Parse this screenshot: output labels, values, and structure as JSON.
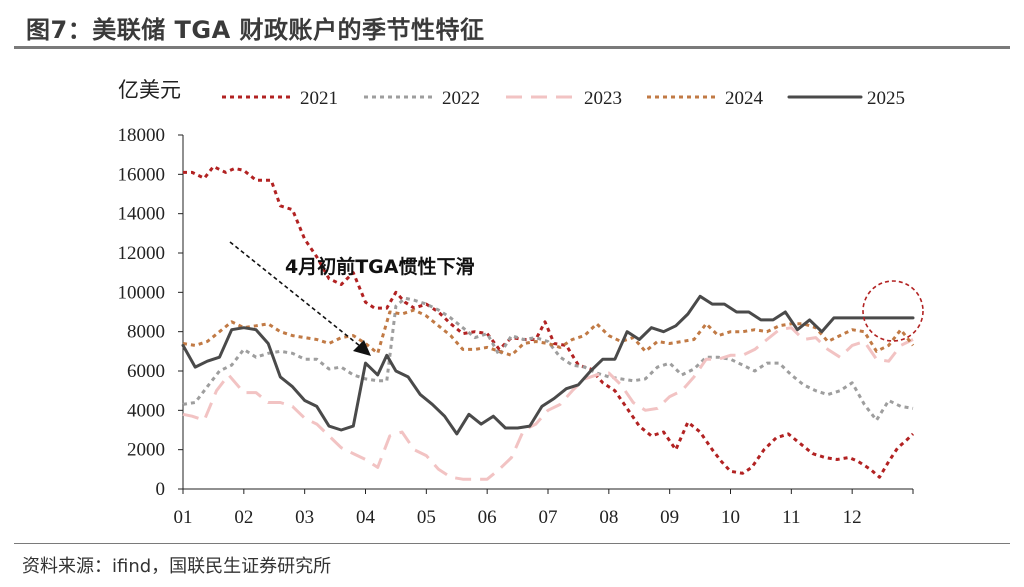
{
  "title": "图7：美联储 TGA 财政账户的季节性特征",
  "source": "资料来源：ifind，国联民生证券研究所",
  "chart_data": {
    "type": "line",
    "ylabel": "亿美元",
    "ylim": [
      0,
      18000
    ],
    "yticks": [
      0,
      2000,
      4000,
      6000,
      8000,
      10000,
      12000,
      14000,
      16000,
      18000
    ],
    "xlim": [
      1,
      13
    ],
    "xticks": [
      "01",
      "02",
      "03",
      "04",
      "05",
      "06",
      "07",
      "08",
      "09",
      "10",
      "11",
      "12"
    ],
    "annotation": "4月初前TGA惯性下滑",
    "highlight": "2025",
    "series": [
      {
        "name": "2021",
        "color": "#b22222",
        "style": "dotted",
        "x": [
          1,
          1.15,
          1.35,
          1.5,
          1.7,
          1.85,
          2,
          2.2,
          2.45,
          2.6,
          2.8,
          3,
          3.2,
          3.4,
          3.6,
          3.8,
          4,
          4.15,
          4.35,
          4.5,
          4.65,
          4.8,
          5,
          5.2,
          5.4,
          5.6,
          5.8,
          6,
          6.2,
          6.4,
          6.6,
          6.8,
          6.95,
          7.1,
          7.3,
          7.5,
          7.7,
          7.9,
          8.1,
          8.3,
          8.5,
          8.7,
          8.9,
          9.1,
          9.3,
          9.5,
          9.7,
          9.85,
          10,
          10.2,
          10.35,
          10.55,
          10.75,
          10.95,
          11.15,
          11.35,
          11.55,
          11.75,
          11.95,
          12.1,
          12.3,
          12.45,
          12.6,
          12.75,
          12.9,
          13
        ],
        "y": [
          16100,
          16100,
          15800,
          16400,
          16100,
          16300,
          16200,
          15700,
          15700,
          14400,
          14200,
          12700,
          11800,
          10700,
          10400,
          11000,
          9500,
          9200,
          9200,
          10000,
          9500,
          9200,
          9400,
          9000,
          8400,
          7900,
          8000,
          7900,
          7100,
          7700,
          7600,
          7600,
          8500,
          7400,
          7300,
          6300,
          6100,
          5400,
          5000,
          4100,
          3200,
          2700,
          2900,
          2000,
          3400,
          2900,
          2000,
          1400,
          900,
          800,
          1100,
          2000,
          2600,
          2800,
          2300,
          1800,
          1600,
          1500,
          1600,
          1400,
          1000,
          600,
          1400,
          2100,
          2500,
          2800
        ]
      },
      {
        "name": "2022",
        "color": "#9e9e9e",
        "style": "dotted",
        "x": [
          1,
          1.2,
          1.4,
          1.6,
          1.8,
          2,
          2.2,
          2.4,
          2.6,
          2.8,
          3,
          3.2,
          3.4,
          3.6,
          3.8,
          4,
          4.2,
          4.35,
          4.5,
          4.65,
          4.8,
          5,
          5.2,
          5.4,
          5.6,
          5.8,
          6,
          6.2,
          6.4,
          6.6,
          6.8,
          7,
          7.2,
          7.4,
          7.6,
          7.8,
          8,
          8.2,
          8.4,
          8.6,
          8.8,
          9,
          9.2,
          9.4,
          9.6,
          9.8,
          10,
          10.2,
          10.4,
          10.6,
          10.8,
          11,
          11.2,
          11.4,
          11.6,
          11.8,
          12,
          12.2,
          12.4,
          12.6,
          12.8,
          13
        ],
        "y": [
          4300,
          4400,
          5200,
          6000,
          6300,
          7100,
          6700,
          6900,
          7000,
          6900,
          6600,
          6600,
          6100,
          6200,
          5800,
          5600,
          5500,
          5500,
          9300,
          9700,
          9600,
          9400,
          9100,
          8700,
          8200,
          7700,
          7900,
          6800,
          7800,
          7600,
          7700,
          7500,
          6700,
          6300,
          6200,
          5900,
          5700,
          5600,
          5500,
          5600,
          6200,
          6400,
          5800,
          6100,
          6700,
          6700,
          6600,
          6300,
          6000,
          6400,
          6400,
          5800,
          5300,
          5000,
          4800,
          5000,
          5400,
          4300,
          3500,
          4500,
          4200,
          4100
        ]
      },
      {
        "name": "2023",
        "color": "#f2c3c3",
        "style": "dashed",
        "x": [
          1,
          1.15,
          1.35,
          1.55,
          1.75,
          2,
          2.2,
          2.4,
          2.6,
          2.8,
          3,
          3.2,
          3.4,
          3.6,
          3.8,
          4,
          4.2,
          4.4,
          4.6,
          4.8,
          5,
          5.2,
          5.4,
          5.6,
          5.8,
          6,
          6.2,
          6.4,
          6.6,
          6.8,
          7,
          7.2,
          7.4,
          7.6,
          7.8,
          8,
          8.2,
          8.4,
          8.6,
          8.8,
          9,
          9.2,
          9.4,
          9.6,
          9.8,
          10,
          10.2,
          10.4,
          10.6,
          10.8,
          11,
          11.2,
          11.4,
          11.6,
          11.8,
          12,
          12.2,
          12.4,
          12.6,
          12.8,
          13
        ],
        "y": [
          3800,
          3700,
          3500,
          5000,
          5800,
          4900,
          4900,
          4400,
          4400,
          4200,
          3600,
          3300,
          2700,
          2100,
          1800,
          1500,
          1100,
          2700,
          2900,
          2000,
          1700,
          1000,
          600,
          500,
          500,
          500,
          1000,
          1600,
          3000,
          3300,
          4000,
          4300,
          5000,
          5600,
          5800,
          5900,
          5300,
          4400,
          4000,
          4100,
          4700,
          5000,
          5700,
          6600,
          6600,
          6800,
          6800,
          7100,
          7600,
          8100,
          8200,
          7600,
          7700,
          7100,
          6700,
          7300,
          7500,
          6600,
          6500,
          7300,
          7600
        ]
      },
      {
        "name": "2024",
        "color": "#c17a45",
        "style": "dotted",
        "x": [
          1,
          1.2,
          1.4,
          1.6,
          1.8,
          2,
          2.2,
          2.4,
          2.6,
          2.8,
          3,
          3.2,
          3.4,
          3.6,
          3.8,
          4,
          4.2,
          4.4,
          4.6,
          4.8,
          5,
          5.2,
          5.4,
          5.6,
          5.8,
          6,
          6.2,
          6.4,
          6.6,
          6.8,
          7,
          7.2,
          7.4,
          7.6,
          7.8,
          8,
          8.2,
          8.4,
          8.6,
          8.8,
          9,
          9.2,
          9.4,
          9.6,
          9.8,
          10,
          10.2,
          10.4,
          10.6,
          10.8,
          11,
          11.2,
          11.4,
          11.6,
          11.8,
          12,
          12.2,
          12.4,
          12.6,
          12.8,
          13
        ],
        "y": [
          7400,
          7300,
          7500,
          8000,
          8500,
          8200,
          8300,
          8400,
          8000,
          7800,
          7700,
          7600,
          7400,
          7700,
          7800,
          7400,
          6900,
          9000,
          8900,
          9100,
          8800,
          8300,
          7800,
          7100,
          7100,
          7200,
          7000,
          6800,
          7400,
          7500,
          7400,
          7200,
          7600,
          7800,
          8400,
          7800,
          7500,
          7700,
          7000,
          7500,
          7400,
          7500,
          7600,
          8400,
          7800,
          8000,
          8000,
          8100,
          8000,
          8300,
          8400,
          8400,
          8200,
          7500,
          7800,
          8100,
          8000,
          7000,
          7300,
          8100,
          7300
        ]
      },
      {
        "name": "2025",
        "color": "#4a4a4a",
        "style": "solid",
        "x": [
          1,
          1.2,
          1.4,
          1.6,
          1.8,
          2,
          2.2,
          2.4,
          2.6,
          2.8,
          3,
          3.2,
          3.4,
          3.6,
          3.8,
          4,
          4.2,
          4.35,
          4.5,
          4.7,
          4.9,
          5.1,
          5.3,
          5.5,
          5.7,
          5.9,
          6.1,
          6.3,
          6.5,
          6.7,
          6.9,
          7.1,
          7.3,
          7.5,
          7.7,
          7.9,
          8.1,
          8.3,
          8.5,
          8.7,
          8.9,
          9.1,
          9.3,
          9.5,
          9.7,
          9.9,
          10.1,
          10.3,
          10.5,
          10.7,
          10.9,
          11.1,
          11.3,
          11.5,
          11.7,
          11.9,
          12.1,
          12.3,
          12.5,
          12.7,
          12.9,
          13
        ],
        "y": [
          7300,
          6200,
          6500,
          6700,
          8100,
          8200,
          8100,
          7400,
          5700,
          5200,
          4500,
          4200,
          3200,
          3000,
          3200,
          6400,
          5800,
          6800,
          6000,
          5700,
          4800,
          4300,
          3700,
          2800,
          3800,
          3300,
          3700,
          3100,
          3100,
          3200,
          4200,
          4600,
          5100,
          5300,
          6000,
          6600,
          6600,
          8000,
          7600,
          8200,
          8000,
          8300,
          8900,
          9800,
          9400,
          9400,
          9000,
          9000,
          8600,
          8600,
          9000,
          8100,
          8600,
          8000,
          8700,
          8700,
          8700,
          8700,
          8700,
          8700,
          8700,
          8700
        ]
      }
    ]
  }
}
